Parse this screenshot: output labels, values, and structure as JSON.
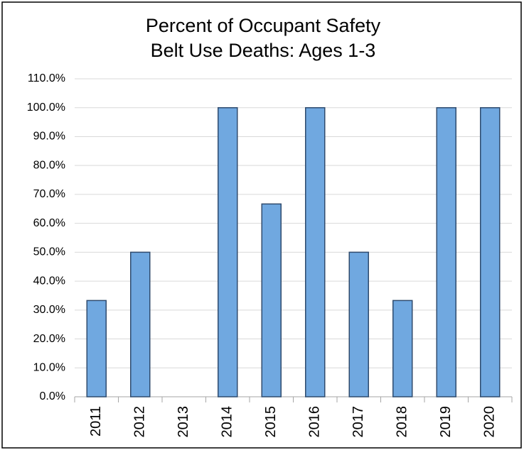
{
  "chart_data": {
    "type": "bar",
    "title": [
      "Percent of Occupant Safety",
      "Belt Use Deaths: Ages 1-3"
    ],
    "categories": [
      "2011",
      "2012",
      "2013",
      "2014",
      "2015",
      "2016",
      "2017",
      "2018",
      "2019",
      "2020"
    ],
    "values": [
      33.3,
      50,
      0,
      100,
      66.7,
      100,
      50,
      33.3,
      100,
      100
    ],
    "color": "#70a8e0",
    "ylim": [
      0,
      110
    ],
    "yticks": [
      {
        "value": 0,
        "label": "0.0%"
      },
      {
        "value": 10,
        "label": "10.0%"
      },
      {
        "value": 20,
        "label": "20.0%"
      },
      {
        "value": 30,
        "label": "30.0%"
      },
      {
        "value": 40,
        "label": "40.0%"
      },
      {
        "value": 50,
        "label": "50.0%"
      },
      {
        "value": 60,
        "label": "60.0%"
      },
      {
        "value": 70,
        "label": "70.0%"
      },
      {
        "value": 80,
        "label": "80.0%"
      },
      {
        "value": 90,
        "label": "90.0%"
      },
      {
        "value": 100,
        "label": "100.0%"
      },
      {
        "value": 110,
        "label": "110.0%"
      }
    ],
    "grid": true
  }
}
